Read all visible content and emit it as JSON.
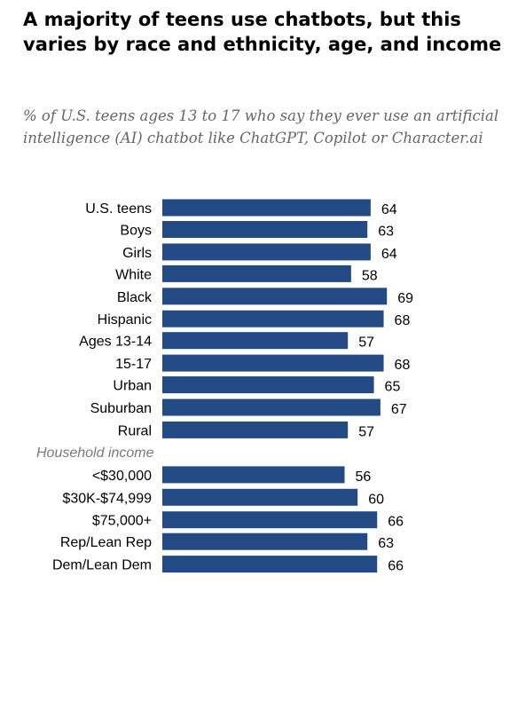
{
  "chart_data": {
    "type": "bar",
    "orientation": "horizontal",
    "title": "A majority of teens use chatbots, but this varies by race and ethnicity, age, and income",
    "subtitle": "% of U.S. teens ages 13 to 17 who say they ever use an artificial intelligence (AI) chatbot like ChatGPT, Copilot or Character.ai",
    "bar_color": "#234a84",
    "groups": [
      {
        "heading": "",
        "categories": [
          "U.S. teens"
        ],
        "values": [
          64
        ]
      },
      {
        "heading": "",
        "categories": [
          "Boys",
          "Girls"
        ],
        "values": [
          63,
          64
        ]
      },
      {
        "heading": "",
        "categories": [
          "White",
          "Black",
          "Hispanic"
        ],
        "values": [
          58,
          69,
          68
        ]
      },
      {
        "heading": "",
        "categories": [
          "Ages 13-14",
          "15-17"
        ],
        "values": [
          57,
          68
        ]
      },
      {
        "heading": "",
        "categories": [
          "Urban",
          "Suburban",
          "Rural"
        ],
        "values": [
          65,
          67,
          57
        ]
      },
      {
        "heading": "Household income",
        "categories": [
          "<$30,000",
          "$30K-$74,999",
          "$75,000+"
        ],
        "values": [
          56,
          60,
          66
        ]
      },
      {
        "heading": "",
        "categories": [
          "Rep/Lean Rep",
          "Dem/Lean Dem"
        ],
        "values": [
          63,
          66
        ]
      }
    ]
  }
}
